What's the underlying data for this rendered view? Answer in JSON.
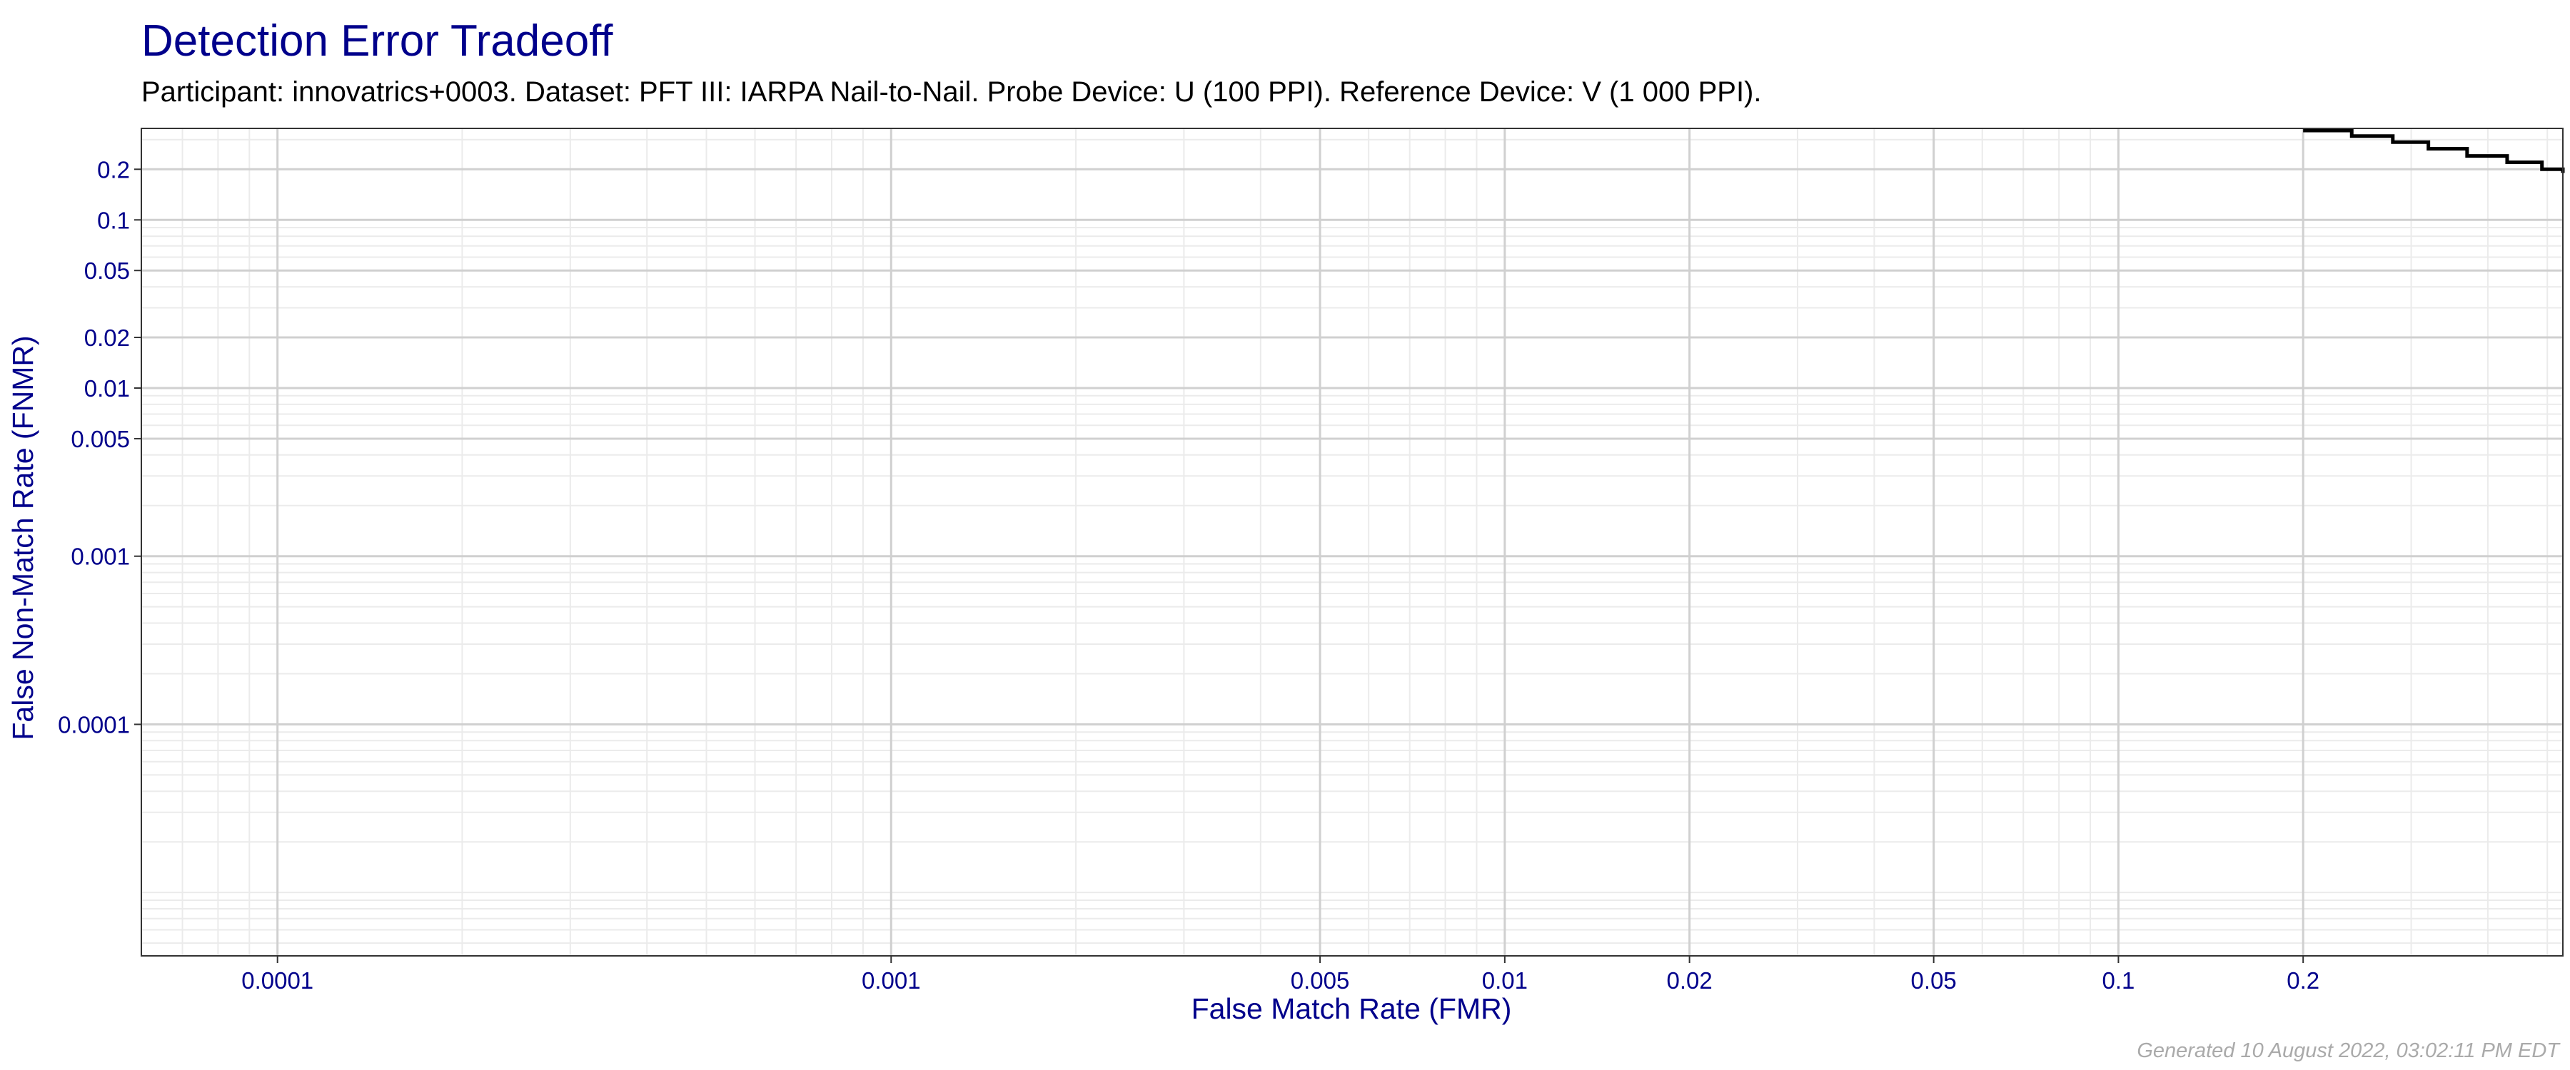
{
  "chart_data": {
    "type": "line",
    "title": "Detection Error Tradeoff",
    "subtitle": "Participant: innovatrics+0003. Dataset: PFT III: IARPA Nail-to-Nail. Probe Device: U (100 PPI). Reference Device: V (1 000 PPI).",
    "xlabel": "False Match Rate (FMR)",
    "ylabel": "False Non-Match Rate (FNMR)",
    "x_scale": "log",
    "y_scale": "log",
    "xlim": [
      6e-05,
      0.53
    ],
    "ylim": [
      4.2e-06,
      0.35
    ],
    "x_ticks": [
      {
        "value": 0.0001,
        "label": "0.0001"
      },
      {
        "value": 0.001,
        "label": "0.001"
      },
      {
        "value": 0.005,
        "label": "0.005"
      },
      {
        "value": 0.01,
        "label": "0.01"
      },
      {
        "value": 0.02,
        "label": "0.02"
      },
      {
        "value": 0.05,
        "label": "0.05"
      },
      {
        "value": 0.1,
        "label": "0.1"
      },
      {
        "value": 0.2,
        "label": "0.2"
      }
    ],
    "y_ticks": [
      {
        "value": 0.2,
        "label": "0.2"
      },
      {
        "value": 0.1,
        "label": "0.1"
      },
      {
        "value": 0.05,
        "label": "0.05"
      },
      {
        "value": 0.02,
        "label": "0.02"
      },
      {
        "value": 0.01,
        "label": "0.01"
      },
      {
        "value": 0.005,
        "label": "0.005"
      },
      {
        "value": 0.001,
        "label": "0.001"
      },
      {
        "value": 0.0001,
        "label": "0.0001"
      }
    ],
    "grid": true,
    "series": [
      {
        "color": "#000000",
        "step": true,
        "x": [
          0.2,
          0.24,
          0.28,
          0.32,
          0.37,
          0.43,
          0.49,
          0.53
        ],
        "y": [
          0.34,
          0.315,
          0.29,
          0.265,
          0.24,
          0.22,
          0.2,
          0.19
        ]
      }
    ]
  },
  "footer": {
    "generated": "Generated 10 August 2022, 03:02:11 PM EDT"
  }
}
